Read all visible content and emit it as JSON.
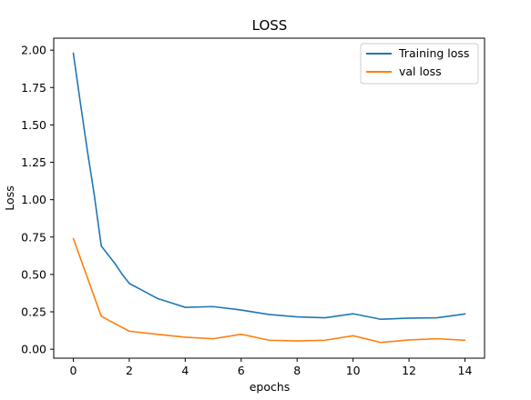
{
  "chart_data": {
    "type": "line",
    "title": "LOSS",
    "xlabel": "epochs",
    "ylabel": "Loss",
    "xlim": [
      -0.7,
      14.7
    ],
    "ylim": [
      -0.06,
      2.08
    ],
    "xticks": [
      0,
      2,
      4,
      6,
      8,
      10,
      12,
      14
    ],
    "xtick_labels": [
      "0",
      "2",
      "4",
      "6",
      "8",
      "10",
      "12",
      "14"
    ],
    "yticks": [
      0.0,
      0.25,
      0.5,
      0.75,
      1.0,
      1.25,
      1.5,
      1.75,
      2.0
    ],
    "ytick_labels": [
      "0.00",
      "0.25",
      "0.50",
      "0.75",
      "1.00",
      "1.25",
      "1.50",
      "1.75",
      "2.00"
    ],
    "grid": false,
    "legend_position": "top-right",
    "series": [
      {
        "name": "Training loss",
        "color": "#1f77b4",
        "x": [
          0,
          0.25,
          0.5,
          0.75,
          1,
          1.25,
          1.5,
          1.75,
          2,
          2.5,
          3,
          3.5,
          4,
          5,
          6,
          7,
          8,
          9,
          10,
          11,
          12,
          13,
          14
        ],
        "y": [
          1.98,
          1.65,
          1.33,
          1.03,
          0.69,
          0.63,
          0.57,
          0.5,
          0.44,
          0.39,
          0.34,
          0.31,
          0.28,
          0.285,
          0.262,
          0.232,
          0.216,
          0.21,
          0.237,
          0.2,
          0.208,
          0.21,
          0.236
        ]
      },
      {
        "name": "val loss",
        "color": "#ff7f0e",
        "x": [
          0,
          0.5,
          1,
          2,
          3,
          4,
          5,
          6,
          7,
          8,
          9,
          10,
          11,
          12,
          13,
          14
        ],
        "y": [
          0.74,
          0.48,
          0.22,
          0.12,
          0.1,
          0.08,
          0.07,
          0.1,
          0.06,
          0.055,
          0.06,
          0.09,
          0.045,
          0.062,
          0.07,
          0.06
        ]
      }
    ]
  }
}
